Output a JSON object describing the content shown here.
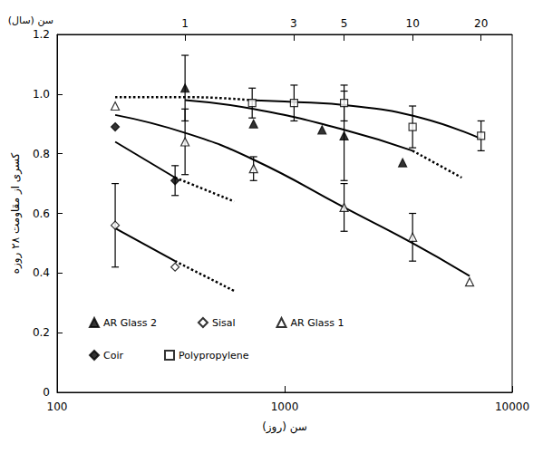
{
  "chart_data": {
    "type": "scatter",
    "x_label": "سن (روز)",
    "x2_label": "سن (سال)",
    "y_label": "کسری از مقاومت ۲۸ روزه",
    "log": "x",
    "grid": false,
    "legend": "lower left",
    "xlim": [
      100,
      10000
    ],
    "xticks": [
      100,
      1000,
      10000
    ],
    "x2lim": [
      100,
      10000
    ],
    "x2ticks": [
      {
        "value": 365,
        "label": "1"
      },
      {
        "value": 1095,
        "label": "3"
      },
      {
        "value": 1825,
        "label": "5"
      },
      {
        "value": 3650,
        "label": "10"
      },
      {
        "value": 7300,
        "label": "20"
      }
    ],
    "ylim": [
      0,
      1.2
    ],
    "yticks": [
      0,
      0.2,
      0.4,
      0.6,
      0.8,
      {
        "value": 1,
        "label": "1.0"
      },
      1.2
    ],
    "series": [
      {
        "name": "AR Glass 2",
        "color": "#000000",
        "marker": "triangle-filled",
        "x": [
          365,
          730,
          1460,
          1825,
          3300
        ],
        "values": [
          1.02,
          0.9,
          0.88,
          0.86,
          0.77
        ],
        "errors": [
          0.11,
          null,
          null,
          0.15,
          null
        ],
        "fit": {
          "x": [
            365,
            730,
            1825,
            3650
          ],
          "values": [
            0.98,
            0.95,
            0.88,
            0.81
          ]
        },
        "extrapolation": {
          "x": [
            3650,
            6000
          ],
          "values": [
            0.81,
            0.72
          ]
        }
      },
      {
        "name": "Sisal",
        "color": "#000000",
        "marker": "diamond-open",
        "x": [
          180,
          330
        ],
        "values": [
          0.56,
          0.42
        ],
        "errors": [
          0.14,
          null
        ],
        "fit": {
          "x": [
            180,
            330
          ],
          "values": [
            0.55,
            0.44
          ]
        },
        "extrapolation": {
          "x": [
            330,
            600
          ],
          "values": [
            0.44,
            0.34
          ]
        }
      },
      {
        "name": "AR Glass 1",
        "color": "#000000",
        "marker": "triangle-open",
        "x": [
          180,
          365,
          730,
          1825,
          3650,
          6500
        ],
        "values": [
          0.96,
          0.84,
          0.75,
          0.62,
          0.52,
          0.37
        ],
        "errors": [
          null,
          0.11,
          0.04,
          0.08,
          0.08,
          null
        ],
        "fit": {
          "x": [
            180,
            365,
            730,
            1825,
            3650,
            6500
          ],
          "values": [
            0.93,
            0.87,
            0.78,
            0.62,
            0.5,
            0.39
          ]
        }
      },
      {
        "name": "Coir",
        "color": "#000000",
        "marker": "diamond-filled",
        "x": [
          180,
          330
        ],
        "values": [
          0.89,
          0.71
        ],
        "errors": [
          null,
          0.05
        ],
        "fit": {
          "x": [
            180,
            330
          ],
          "values": [
            0.84,
            0.72
          ]
        },
        "extrapolation": {
          "x": [
            330,
            600
          ],
          "values": [
            0.72,
            0.64
          ]
        }
      },
      {
        "name": "Polypropylene",
        "color": "#000000",
        "marker": "square-open",
        "x": [
          720,
          1100,
          1825,
          3650,
          7300
        ],
        "values": [
          0.97,
          0.97,
          0.97,
          0.89,
          0.86
        ],
        "errors": [
          0.05,
          0.06,
          0.06,
          0.07,
          0.05
        ],
        "fit": {
          "x": [
            700,
            1000,
            2000,
            4000,
            7300
          ],
          "values": [
            0.98,
            0.975,
            0.96,
            0.92,
            0.85
          ]
        },
        "extrapolation": {
          "x": [
            180,
            365,
            700
          ],
          "values": [
            0.99,
            0.99,
            0.98
          ]
        }
      }
    ]
  }
}
